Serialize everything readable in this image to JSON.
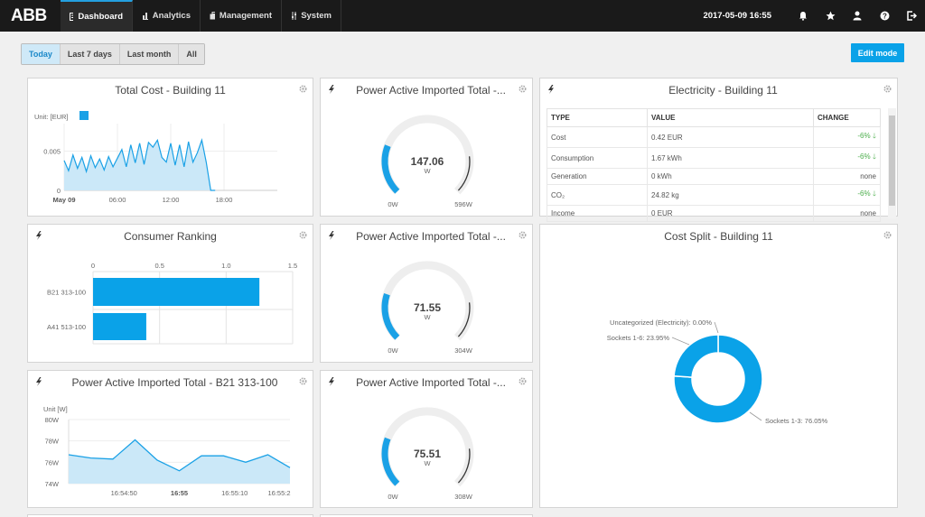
{
  "app": {
    "logo": "ABB",
    "nav": [
      {
        "label": "Dashboard",
        "icon": "dashboard-icon"
      },
      {
        "label": "Analytics",
        "icon": "bar-chart-icon"
      },
      {
        "label": "Management",
        "icon": "briefcase-icon"
      },
      {
        "label": "System",
        "icon": "sliders-icon"
      }
    ],
    "datetime": "2017-05-09 16:55",
    "icons": [
      "bell-icon",
      "star-icon",
      "user-icon",
      "help-icon",
      "logout-icon"
    ]
  },
  "toolbar": {
    "ranges": [
      "Today",
      "Last 7 days",
      "Last month",
      "All"
    ],
    "active_range": "Today",
    "edit_label": "Edit mode"
  },
  "colors": {
    "accent": "#0aa2e8",
    "series": "#1aa1e6",
    "positive": "#4cae4c",
    "topbar": "#1a1a1a"
  },
  "widgets": {
    "total_cost": {
      "title": "Total Cost - Building 11",
      "unit_label": "Unit: [EUR]",
      "chart_data": {
        "type": "area",
        "x_ticks": [
          "May 09",
          "06:00",
          "12:00",
          "18:00"
        ],
        "y_ticks": [
          "0",
          "0.005"
        ],
        "ylim": [
          0,
          0.0085
        ],
        "x_hours": [
          0,
          0.5,
          1,
          1.5,
          2,
          2.5,
          3,
          3.5,
          4,
          4.5,
          5,
          5.5,
          6,
          6.5,
          7,
          7.5,
          8,
          8.5,
          9,
          9.5,
          10,
          10.5,
          11,
          11.5,
          12,
          12.5,
          13,
          13.5,
          14,
          14.5,
          15,
          15.5,
          16,
          16.5,
          17
        ],
        "values": [
          0.0038,
          0.0025,
          0.0045,
          0.0028,
          0.0042,
          0.0024,
          0.0044,
          0.0029,
          0.004,
          0.0026,
          0.0043,
          0.003,
          0.0041,
          0.0052,
          0.003,
          0.0058,
          0.0035,
          0.006,
          0.0033,
          0.0061,
          0.0055,
          0.0064,
          0.0042,
          0.0036,
          0.006,
          0.0032,
          0.0058,
          0.003,
          0.0062,
          0.0036,
          0.0048,
          0.0064,
          0.0036,
          0,
          0
        ]
      }
    },
    "gauge1": {
      "title": "Power Active Imported Total -...",
      "value": "147.06",
      "unit": "W",
      "min": "0W",
      "max": "596W",
      "fraction": 0.247
    },
    "gauge2": {
      "title": "Power Active Imported Total -...",
      "value": "71.55",
      "unit": "W",
      "min": "0W",
      "max": "304W",
      "fraction": 0.235
    },
    "gauge3": {
      "title": "Power Active Imported Total -...",
      "value": "75.51",
      "unit": "W",
      "min": "0W",
      "max": "308W",
      "fraction": 0.245
    },
    "electricity": {
      "title": "Electricity - Building 11",
      "headers": [
        "TYPE",
        "VALUE",
        "CHANGE"
      ],
      "rows": [
        {
          "type": "Cost",
          "value": "0.42 EUR",
          "change": "-6%"
        },
        {
          "type": "Consumption",
          "value": "1.67 kWh",
          "change": "-6%"
        },
        {
          "type": "Generation",
          "value": "0 kWh",
          "change": "none"
        },
        {
          "type": "CO₂",
          "value": "24.82 kg",
          "change": "-6%"
        },
        {
          "type": "Income",
          "value": "0 EUR",
          "change": "none"
        }
      ]
    },
    "ranking": {
      "title": "Consumer Ranking",
      "chart_data": {
        "type": "bar",
        "orientation": "horizontal",
        "categories": [
          "B21 313-100",
          "A41 513-100"
        ],
        "values": [
          1.25,
          0.4
        ],
        "x_ticks": [
          "0",
          "0.5",
          "1.0",
          "1.5"
        ],
        "xlim": [
          0,
          1.5
        ]
      }
    },
    "cost_split": {
      "title": "Cost Split - Building 11",
      "chart_data": {
        "type": "pie",
        "labels": [
          "Sockets 1-3: 76.05%",
          "Sockets 1-6: 23.95%",
          "Uncategorized (Electricity): 0.00%"
        ],
        "values": [
          76.05,
          23.95,
          0.0
        ]
      }
    },
    "power_b21": {
      "title": "Power Active Imported Total - B21 313-100",
      "unit_label": "Unit [W]",
      "chart_data": {
        "type": "area",
        "y_ticks": [
          "80W",
          "78W",
          "76W",
          "74W"
        ],
        "ylim": [
          74,
          80
        ],
        "x_ticks": [
          "16:54:50",
          "16:55",
          "16:55:10",
          "16:55:2"
        ],
        "x_seconds": [
          0,
          3,
          6,
          9,
          12,
          15,
          18,
          21,
          24,
          27,
          30
        ],
        "values": [
          76.7,
          76.4,
          76.3,
          78.1,
          76.2,
          75.2,
          76.6,
          76.6,
          76.0,
          76.7,
          75.5
        ]
      }
    }
  }
}
